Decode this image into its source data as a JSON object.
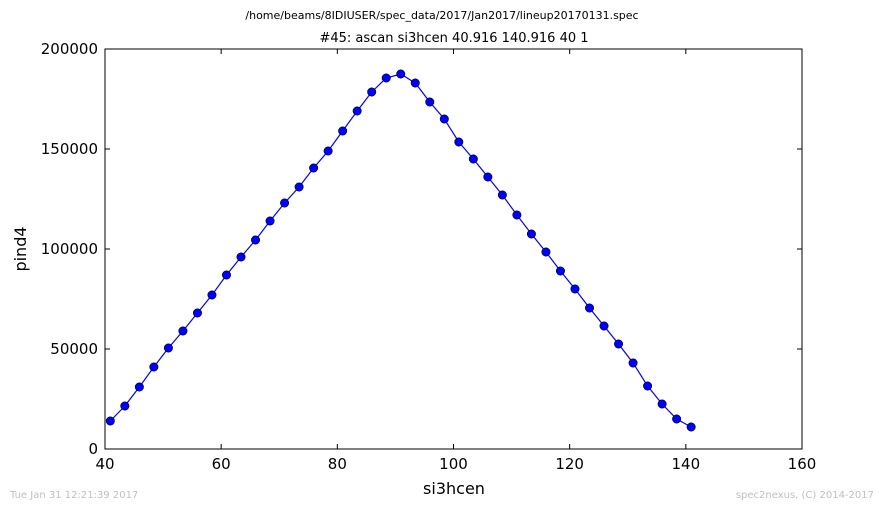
{
  "footer": {
    "timestamp": "Tue Jan 31 12:21:39 2017",
    "credit": "spec2nexus, (C) 2014-2017"
  },
  "chart_data": {
    "type": "line",
    "file_path": "/home/beams/8IDIUSER/spec_data/2017/Jan2017/lineup20170131.spec",
    "title": "#45: ascan  si3hcen 40.916 140.916  40 1",
    "xlabel": "si3hcen",
    "ylabel": "pind4",
    "xlim": [
      40,
      160
    ],
    "ylim": [
      0,
      200000
    ],
    "xticks": [
      "40",
      "60",
      "80",
      "100",
      "120",
      "140",
      "160"
    ],
    "yticks": [
      "0",
      "50000",
      "100000",
      "150000",
      "200000"
    ],
    "grid": false,
    "legend": false,
    "marker": "circle",
    "line_color": "#0000ff",
    "marker_color": "#0000ff",
    "series": [
      {
        "x": [
          40.916,
          43.416,
          45.916,
          48.416,
          50.916,
          53.416,
          55.916,
          58.416,
          60.916,
          63.416,
          65.916,
          68.416,
          70.916,
          73.416,
          75.916,
          78.416,
          80.916,
          83.416,
          85.916,
          88.416,
          90.916,
          93.416,
          95.916,
          98.416,
          100.916,
          103.416,
          105.916,
          108.416,
          110.916,
          113.416,
          115.916,
          118.416,
          120.916,
          123.416,
          125.916,
          128.416,
          130.916,
          133.416,
          135.916,
          138.416,
          140.916
        ],
        "y": [
          14000,
          21500,
          31000,
          41000,
          50500,
          59000,
          68000,
          77000,
          87000,
          96000,
          104500,
          114000,
          123000,
          131000,
          140500,
          149000,
          159000,
          169000,
          178500,
          185500,
          187500,
          183000,
          173500,
          165000,
          153500,
          145000,
          136000,
          127000,
          117000,
          107500,
          98500,
          89000,
          80000,
          70500,
          61500,
          52500,
          43000,
          31500,
          22500,
          15000,
          11000
        ]
      }
    ]
  }
}
